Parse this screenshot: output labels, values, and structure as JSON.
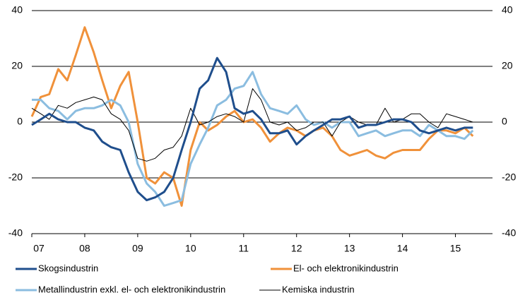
{
  "chart_data": {
    "type": "line",
    "x": [
      7,
      7.17,
      7.33,
      7.5,
      7.67,
      7.83,
      8,
      8.17,
      8.33,
      8.5,
      8.67,
      8.83,
      9,
      9.17,
      9.33,
      9.5,
      9.67,
      9.83,
      10,
      10.17,
      10.33,
      10.5,
      10.67,
      10.83,
      11,
      11.17,
      11.33,
      11.5,
      11.67,
      11.83,
      12,
      12.17,
      12.33,
      12.5,
      12.67,
      12.83,
      13,
      13.17,
      13.33,
      13.5,
      13.67,
      13.83,
      14,
      14.17,
      14.33,
      14.5,
      14.67,
      14.83,
      15,
      15.17,
      15.33
    ],
    "series": [
      {
        "name": "Skogsindustrin",
        "color": "#1f4e8c",
        "width": 3,
        "values": [
          -1,
          1,
          3,
          1,
          0,
          0,
          -2,
          -3,
          -7,
          -9,
          -10,
          -18,
          -25,
          -28,
          -27,
          -25,
          -20,
          -10,
          0,
          12,
          15,
          23,
          18,
          5,
          3,
          4,
          1,
          -4,
          -4,
          -3,
          -8,
          -5,
          -3,
          -1,
          1,
          1,
          2,
          -2,
          -1,
          -1,
          0,
          1,
          1,
          0,
          -3,
          -4,
          -3,
          -2,
          -3,
          -2,
          -2
        ]
      },
      {
        "name": "El- och elektronikindustrin",
        "color": "#f0913a",
        "width": 3,
        "values": [
          2,
          9,
          10,
          19,
          15,
          24,
          34,
          25,
          15,
          5,
          13,
          18,
          0,
          -20,
          -22,
          -18,
          -20,
          -30,
          -10,
          0,
          -3,
          -1,
          2,
          4,
          0,
          1,
          -2,
          -7,
          -4,
          -2,
          -3,
          -5,
          -3,
          -2,
          -5,
          -10,
          -12,
          -11,
          -10,
          -12,
          -13,
          -11,
          -10,
          -10,
          -10,
          -6,
          -3,
          -3,
          -4,
          -2,
          -5
        ]
      },
      {
        "name": "Metallindustrin exkl. el- och elektronikindustrin",
        "color": "#8bbde0",
        "width": 3,
        "values": [
          8,
          8,
          5,
          4,
          1,
          4,
          5,
          5,
          6,
          8,
          6,
          0,
          -15,
          -22,
          -25,
          -30,
          -29,
          -28,
          -15,
          -8,
          -2,
          6,
          8,
          12,
          13,
          18,
          10,
          5,
          4,
          3,
          6,
          1,
          -1,
          0,
          -2,
          0,
          0,
          -5,
          -4,
          -3,
          -5,
          -4,
          -3,
          -3,
          -5,
          -1,
          -3,
          -5,
          -5,
          -6,
          -3
        ]
      },
      {
        "name": "Kemiska industrin",
        "color": "#000000",
        "width": 1,
        "values": [
          5,
          3,
          1,
          6,
          5,
          7,
          8,
          9,
          8,
          3,
          1,
          -3,
          -13,
          -14,
          -13,
          -10,
          -9,
          -5,
          5,
          -1,
          0,
          2,
          3,
          2,
          0,
          12,
          8,
          0,
          -1,
          0,
          -3,
          -2,
          0,
          0,
          -5,
          0,
          2,
          0,
          -1,
          -1,
          5,
          0,
          1,
          3,
          3,
          0,
          -2,
          3,
          2,
          1,
          0
        ]
      }
    ],
    "xlim": [
      7,
      15.7
    ],
    "xticks": [
      {
        "value": 7,
        "label": "07"
      },
      {
        "value": 8,
        "label": "08"
      },
      {
        "value": 9,
        "label": "09"
      },
      {
        "value": 10,
        "label": "10"
      },
      {
        "value": 11,
        "label": "11"
      },
      {
        "value": 12,
        "label": "12"
      },
      {
        "value": 13,
        "label": "13"
      },
      {
        "value": 14,
        "label": "14"
      },
      {
        "value": 15,
        "label": "15"
      }
    ],
    "ylim": [
      -40,
      40
    ],
    "yticks": [
      -40,
      -20,
      0,
      20,
      40
    ],
    "y2lim": [
      -40,
      40
    ],
    "y2ticks": [
      -40,
      -20,
      0,
      20,
      40
    ],
    "grid": true
  }
}
